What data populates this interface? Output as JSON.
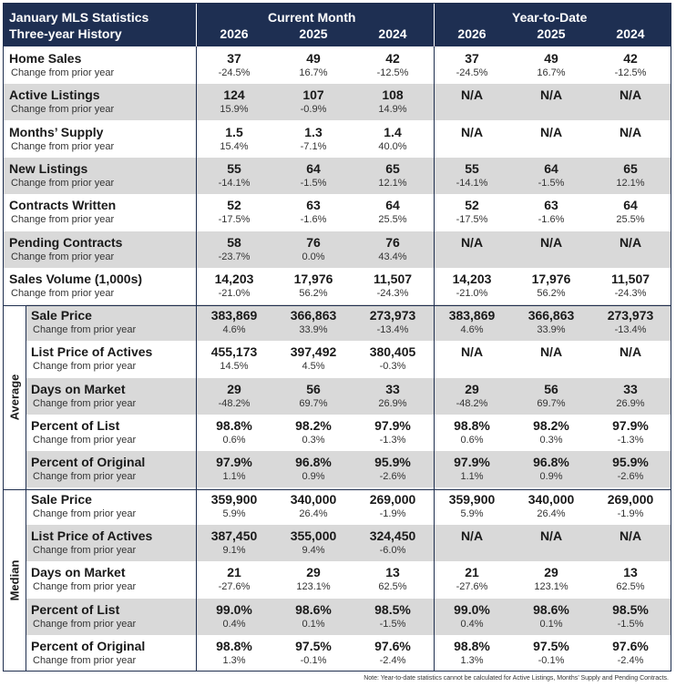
{
  "header": {
    "title_line1": "January MLS Statistics",
    "title_line2": "Three-year History",
    "current_month": "Current Month",
    "ytd": "Year-to-Date",
    "years": [
      "2026",
      "2025",
      "2024",
      "2026",
      "2025",
      "2024"
    ]
  },
  "sections": {
    "average": "Average",
    "median": "Median"
  },
  "change_label": "Change from prior year",
  "rows": [
    {
      "label": "Home Sales",
      "values": [
        "37",
        "49",
        "42",
        "37",
        "49",
        "42"
      ],
      "changes": [
        "-24.5%",
        "16.7%",
        "-12.5%",
        "-24.5%",
        "16.7%",
        "-12.5%"
      ]
    },
    {
      "label": "Active Listings",
      "values": [
        "124",
        "107",
        "108",
        "N/A",
        "N/A",
        "N/A"
      ],
      "changes": [
        "15.9%",
        "-0.9%",
        "14.9%",
        "",
        "",
        ""
      ]
    },
    {
      "label": "Months’ Supply",
      "values": [
        "1.5",
        "1.3",
        "1.4",
        "N/A",
        "N/A",
        "N/A"
      ],
      "changes": [
        "15.4%",
        "-7.1%",
        "40.0%",
        "",
        "",
        ""
      ]
    },
    {
      "label": "New Listings",
      "values": [
        "55",
        "64",
        "65",
        "55",
        "64",
        "65"
      ],
      "changes": [
        "-14.1%",
        "-1.5%",
        "12.1%",
        "-14.1%",
        "-1.5%",
        "12.1%"
      ]
    },
    {
      "label": "Contracts Written",
      "values": [
        "52",
        "63",
        "64",
        "52",
        "63",
        "64"
      ],
      "changes": [
        "-17.5%",
        "-1.6%",
        "25.5%",
        "-17.5%",
        "-1.6%",
        "25.5%"
      ]
    },
    {
      "label": "Pending Contracts",
      "values": [
        "58",
        "76",
        "76",
        "N/A",
        "N/A",
        "N/A"
      ],
      "changes": [
        "-23.7%",
        "0.0%",
        "43.4%",
        "",
        "",
        ""
      ]
    },
    {
      "label": "Sales Volume (1,000s)",
      "values": [
        "14,203",
        "17,976",
        "11,507",
        "14,203",
        "17,976",
        "11,507"
      ],
      "changes": [
        "-21.0%",
        "56.2%",
        "-24.3%",
        "-21.0%",
        "56.2%",
        "-24.3%"
      ]
    },
    {
      "label": "Sale Price",
      "values": [
        "383,869",
        "366,863",
        "273,973",
        "383,869",
        "366,863",
        "273,973"
      ],
      "changes": [
        "4.6%",
        "33.9%",
        "-13.4%",
        "4.6%",
        "33.9%",
        "-13.4%"
      ]
    },
    {
      "label": "List Price of Actives",
      "values": [
        "455,173",
        "397,492",
        "380,405",
        "N/A",
        "N/A",
        "N/A"
      ],
      "changes": [
        "14.5%",
        "4.5%",
        "-0.3%",
        "",
        "",
        ""
      ]
    },
    {
      "label": "Days on Market",
      "values": [
        "29",
        "56",
        "33",
        "29",
        "56",
        "33"
      ],
      "changes": [
        "-48.2%",
        "69.7%",
        "26.9%",
        "-48.2%",
        "69.7%",
        "26.9%"
      ]
    },
    {
      "label": "Percent of List",
      "values": [
        "98.8%",
        "98.2%",
        "97.9%",
        "98.8%",
        "98.2%",
        "97.9%"
      ],
      "changes": [
        "0.6%",
        "0.3%",
        "-1.3%",
        "0.6%",
        "0.3%",
        "-1.3%"
      ]
    },
    {
      "label": "Percent of Original",
      "values": [
        "97.9%",
        "96.8%",
        "95.9%",
        "97.9%",
        "96.8%",
        "95.9%"
      ],
      "changes": [
        "1.1%",
        "0.9%",
        "-2.6%",
        "1.1%",
        "0.9%",
        "-2.6%"
      ]
    },
    {
      "label": "Sale Price",
      "values": [
        "359,900",
        "340,000",
        "269,000",
        "359,900",
        "340,000",
        "269,000"
      ],
      "changes": [
        "5.9%",
        "26.4%",
        "-1.9%",
        "5.9%",
        "26.4%",
        "-1.9%"
      ]
    },
    {
      "label": "List Price of Actives",
      "values": [
        "387,450",
        "355,000",
        "324,450",
        "N/A",
        "N/A",
        "N/A"
      ],
      "changes": [
        "9.1%",
        "9.4%",
        "-6.0%",
        "",
        "",
        ""
      ]
    },
    {
      "label": "Days on Market",
      "values": [
        "21",
        "29",
        "13",
        "21",
        "29",
        "13"
      ],
      "changes": [
        "-27.6%",
        "123.1%",
        "62.5%",
        "-27.6%",
        "123.1%",
        "62.5%"
      ]
    },
    {
      "label": "Percent of List",
      "values": [
        "99.0%",
        "98.6%",
        "98.5%",
        "99.0%",
        "98.6%",
        "98.5%"
      ],
      "changes": [
        "0.4%",
        "0.1%",
        "-1.5%",
        "0.4%",
        "0.1%",
        "-1.5%"
      ]
    },
    {
      "label": "Percent of Original",
      "values": [
        "98.8%",
        "97.5%",
        "97.6%",
        "98.8%",
        "97.5%",
        "97.6%"
      ],
      "changes": [
        "1.3%",
        "-0.1%",
        "-2.4%",
        "1.3%",
        "-0.1%",
        "-2.4%"
      ]
    }
  ],
  "note": "Note: Year-to-date statistics cannot be calculated for Active Listings, Months’ Supply and Pending Contracts.",
  "colors": {
    "header_bg": "#1e2f52",
    "shade": "#d9d9d9",
    "border": "#1f2f4f"
  }
}
